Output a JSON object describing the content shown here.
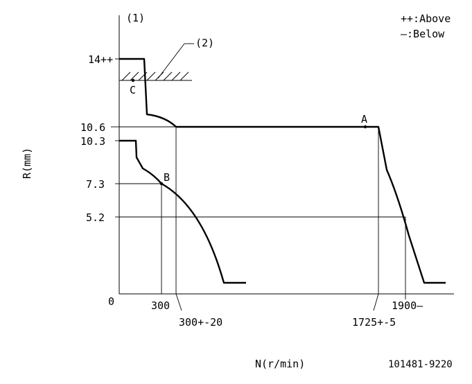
{
  "header": {
    "marker_1": "(1)",
    "marker_2": "(2)",
    "legend_above": "++:Above",
    "legend_below": "—:Below"
  },
  "axes": {
    "y_label": "R(mm)",
    "x_label": "N(r/min)",
    "origin": "0",
    "y_ticks": [
      "14++",
      "10.6",
      "10.3",
      "7.3",
      "5.2"
    ],
    "x_ticks": [
      "300",
      "300+-20",
      "1725+-5",
      "1900—"
    ]
  },
  "points": {
    "a": "A",
    "b": "B",
    "c": "C"
  },
  "footer": {
    "part_number": "101481-9220"
  }
}
